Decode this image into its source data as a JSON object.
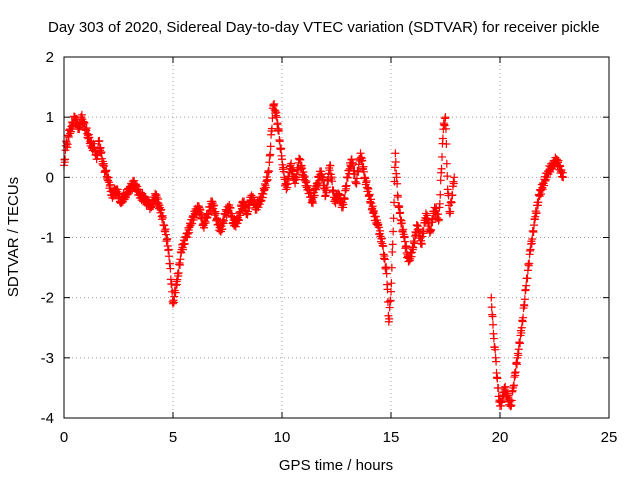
{
  "chart_data": {
    "type": "scatter",
    "title": "Day 303 of 2020, Sidereal Day-to-day VTEC variation (SDTVAR) for receiver pickle",
    "xlabel": "GPS time / hours",
    "ylabel": "SDTVAR / TECUs",
    "xlim": [
      0,
      25
    ],
    "ylim": [
      -4,
      2
    ],
    "xticks": [
      0,
      5,
      10,
      15,
      20,
      25
    ],
    "xtick_labels": [
      "0",
      "5",
      "10",
      "15",
      "20",
      "25"
    ],
    "yticks": [
      -4,
      -3,
      -2,
      -1,
      0,
      1,
      2
    ],
    "ytick_labels": [
      "-4",
      "-3",
      "-2",
      "-1",
      "0",
      "1",
      "2"
    ],
    "grid": true,
    "marker": "+",
    "color": "#ff0000",
    "series": [
      {
        "name": "SDTVAR",
        "x": [
          0.0,
          0.05,
          0.1,
          0.15,
          0.2,
          0.3,
          0.4,
          0.5,
          0.6,
          0.7,
          0.8,
          0.9,
          1.0,
          1.1,
          1.2,
          1.3,
          1.4,
          1.5,
          1.6,
          1.7,
          1.8,
          1.9,
          2.0,
          2.2,
          2.4,
          2.6,
          2.8,
          3.0,
          3.2,
          3.5,
          3.8,
          4.0,
          4.2,
          4.4,
          4.6,
          4.8,
          5.0,
          5.2,
          5.4,
          5.6,
          5.8,
          6.0,
          6.2,
          6.4,
          6.6,
          6.8,
          7.0,
          7.2,
          7.4,
          7.6,
          7.8,
          8.0,
          8.2,
          8.4,
          8.6,
          8.8,
          9.0,
          9.2,
          9.4,
          9.6,
          9.7,
          9.8,
          9.9,
          10.0,
          10.1,
          10.2,
          10.4,
          10.6,
          10.8,
          11.0,
          11.2,
          11.4,
          11.6,
          11.8,
          12.0,
          12.2,
          12.4,
          12.6,
          12.8,
          13.0,
          13.2,
          13.4,
          13.6,
          13.8,
          14.0,
          14.2,
          14.4,
          14.6,
          14.8,
          14.9,
          15.0,
          15.1,
          15.2,
          15.3,
          15.4,
          15.6,
          15.8,
          16.0,
          16.2,
          16.4,
          16.6,
          16.8,
          17.0,
          17.2,
          17.4,
          17.5,
          17.6,
          17.7,
          17.8,
          17.9,
          19.6,
          19.7,
          19.8,
          19.9,
          20.0,
          20.1,
          20.2,
          20.3,
          20.4,
          20.5,
          20.6,
          20.8,
          21.0,
          21.2,
          21.4,
          21.6,
          21.8,
          22.0,
          22.2,
          22.4,
          22.6,
          22.8,
          22.9
        ],
        "y": [
          0.2,
          0.3,
          0.6,
          0.5,
          0.7,
          0.8,
          0.9,
          1.0,
          0.9,
          0.8,
          1.0,
          0.9,
          0.8,
          0.7,
          0.6,
          0.5,
          0.5,
          0.3,
          0.6,
          0.4,
          0.2,
          0.1,
          0.0,
          -0.3,
          -0.2,
          -0.4,
          -0.3,
          -0.2,
          -0.1,
          -0.3,
          -0.4,
          -0.5,
          -0.3,
          -0.5,
          -0.8,
          -1.2,
          -2.1,
          -1.7,
          -1.2,
          -1.0,
          -0.8,
          -0.6,
          -0.5,
          -0.8,
          -0.6,
          -0.4,
          -0.7,
          -0.9,
          -0.6,
          -0.5,
          -0.8,
          -0.7,
          -0.4,
          -0.6,
          -0.3,
          -0.5,
          -0.4,
          -0.2,
          0.1,
          1.2,
          1.1,
          0.9,
          0.6,
          0.3,
          0.0,
          -0.2,
          0.2,
          -0.1,
          0.3,
          0.0,
          -0.2,
          -0.4,
          -0.1,
          0.1,
          -0.3,
          0.2,
          -0.4,
          -0.3,
          -0.5,
          0.0,
          0.3,
          -0.1,
          0.4,
          0.0,
          -0.3,
          -0.6,
          -0.8,
          -1.1,
          -1.6,
          -2.4,
          -1.9,
          -0.9,
          0.4,
          -0.3,
          -0.6,
          -1.0,
          -1.4,
          -1.2,
          -0.8,
          -1.1,
          -0.6,
          -0.9,
          -0.5,
          -0.7,
          0.8,
          1.0,
          -0.2,
          -0.6,
          -0.3,
          0.0,
          -2.0,
          -2.6,
          -3.0,
          -3.5,
          -3.8,
          -3.7,
          -3.5,
          -3.6,
          -3.7,
          -3.8,
          -3.5,
          -3.0,
          -2.5,
          -1.8,
          -1.2,
          -0.7,
          -0.3,
          -0.1,
          0.1,
          0.2,
          0.3,
          0.1,
          0.0
        ]
      }
    ]
  }
}
